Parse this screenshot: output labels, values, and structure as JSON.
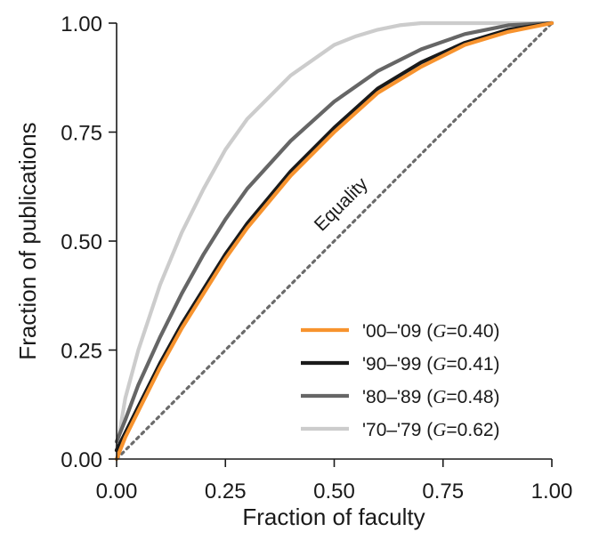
{
  "chart_data": {
    "type": "line",
    "title": "",
    "xlabel": "Fraction of faculty",
    "ylabel": "Fraction of publications",
    "xlim": [
      0,
      1
    ],
    "ylim": [
      0,
      1
    ],
    "x_ticks": [
      "0.00",
      "0.25",
      "0.50",
      "0.75",
      "1.00"
    ],
    "y_ticks": [
      "0.00",
      "0.25",
      "0.50",
      "0.75",
      "1.00"
    ],
    "grid": false,
    "legend_position": "bottom-right",
    "equality": {
      "label": "Equality",
      "x": [
        0,
        1
      ],
      "y": [
        0,
        1
      ],
      "color": "#6b6b6b"
    },
    "series": [
      {
        "name": "'70–'79",
        "legend_prefix": "'70–'79 (",
        "legend_var": "G",
        "legend_suffix": "=0.62)",
        "color": "#cccccc",
        "x": [
          0,
          0.02,
          0.05,
          0.1,
          0.15,
          0.2,
          0.25,
          0.3,
          0.4,
          0.5,
          0.55,
          0.6,
          0.65,
          0.7,
          0.8,
          0.9,
          1.0
        ],
        "y": [
          0.02,
          0.14,
          0.25,
          0.4,
          0.52,
          0.62,
          0.71,
          0.78,
          0.88,
          0.95,
          0.97,
          0.985,
          0.995,
          1.0,
          1.0,
          1.0,
          1.0
        ]
      },
      {
        "name": "'80–'89",
        "legend_prefix": "'80–'89 (",
        "legend_var": "G",
        "legend_suffix": "=0.48)",
        "color": "#666666",
        "x": [
          0,
          0.02,
          0.05,
          0.1,
          0.15,
          0.2,
          0.25,
          0.3,
          0.4,
          0.5,
          0.6,
          0.7,
          0.8,
          0.9,
          1.0
        ],
        "y": [
          0.04,
          0.09,
          0.17,
          0.28,
          0.38,
          0.47,
          0.55,
          0.62,
          0.73,
          0.82,
          0.89,
          0.94,
          0.975,
          0.995,
          1.0
        ]
      },
      {
        "name": "'90–'99",
        "legend_prefix": "'90–'99 (",
        "legend_var": "G",
        "legend_suffix": "=0.41)",
        "color": "#1a1a1a",
        "x": [
          0,
          0.02,
          0.05,
          0.1,
          0.15,
          0.2,
          0.25,
          0.3,
          0.4,
          0.5,
          0.6,
          0.7,
          0.8,
          0.9,
          1.0
        ],
        "y": [
          0.02,
          0.06,
          0.12,
          0.22,
          0.31,
          0.39,
          0.47,
          0.54,
          0.66,
          0.76,
          0.85,
          0.91,
          0.955,
          0.985,
          1.0
        ]
      },
      {
        "name": "'00–'09",
        "legend_prefix": "'00–'09 (",
        "legend_var": "G",
        "legend_suffix": "=0.40)",
        "color": "#f7932e",
        "x": [
          0,
          0.02,
          0.05,
          0.1,
          0.15,
          0.2,
          0.25,
          0.3,
          0.4,
          0.5,
          0.6,
          0.7,
          0.8,
          0.9,
          1.0
        ],
        "y": [
          0.0,
          0.05,
          0.11,
          0.21,
          0.3,
          0.38,
          0.46,
          0.53,
          0.65,
          0.75,
          0.84,
          0.9,
          0.95,
          0.98,
          1.0
        ]
      }
    ],
    "legend_order": [
      "'00–'09",
      "'90–'99",
      "'80–'89",
      "'70–'79"
    ]
  }
}
